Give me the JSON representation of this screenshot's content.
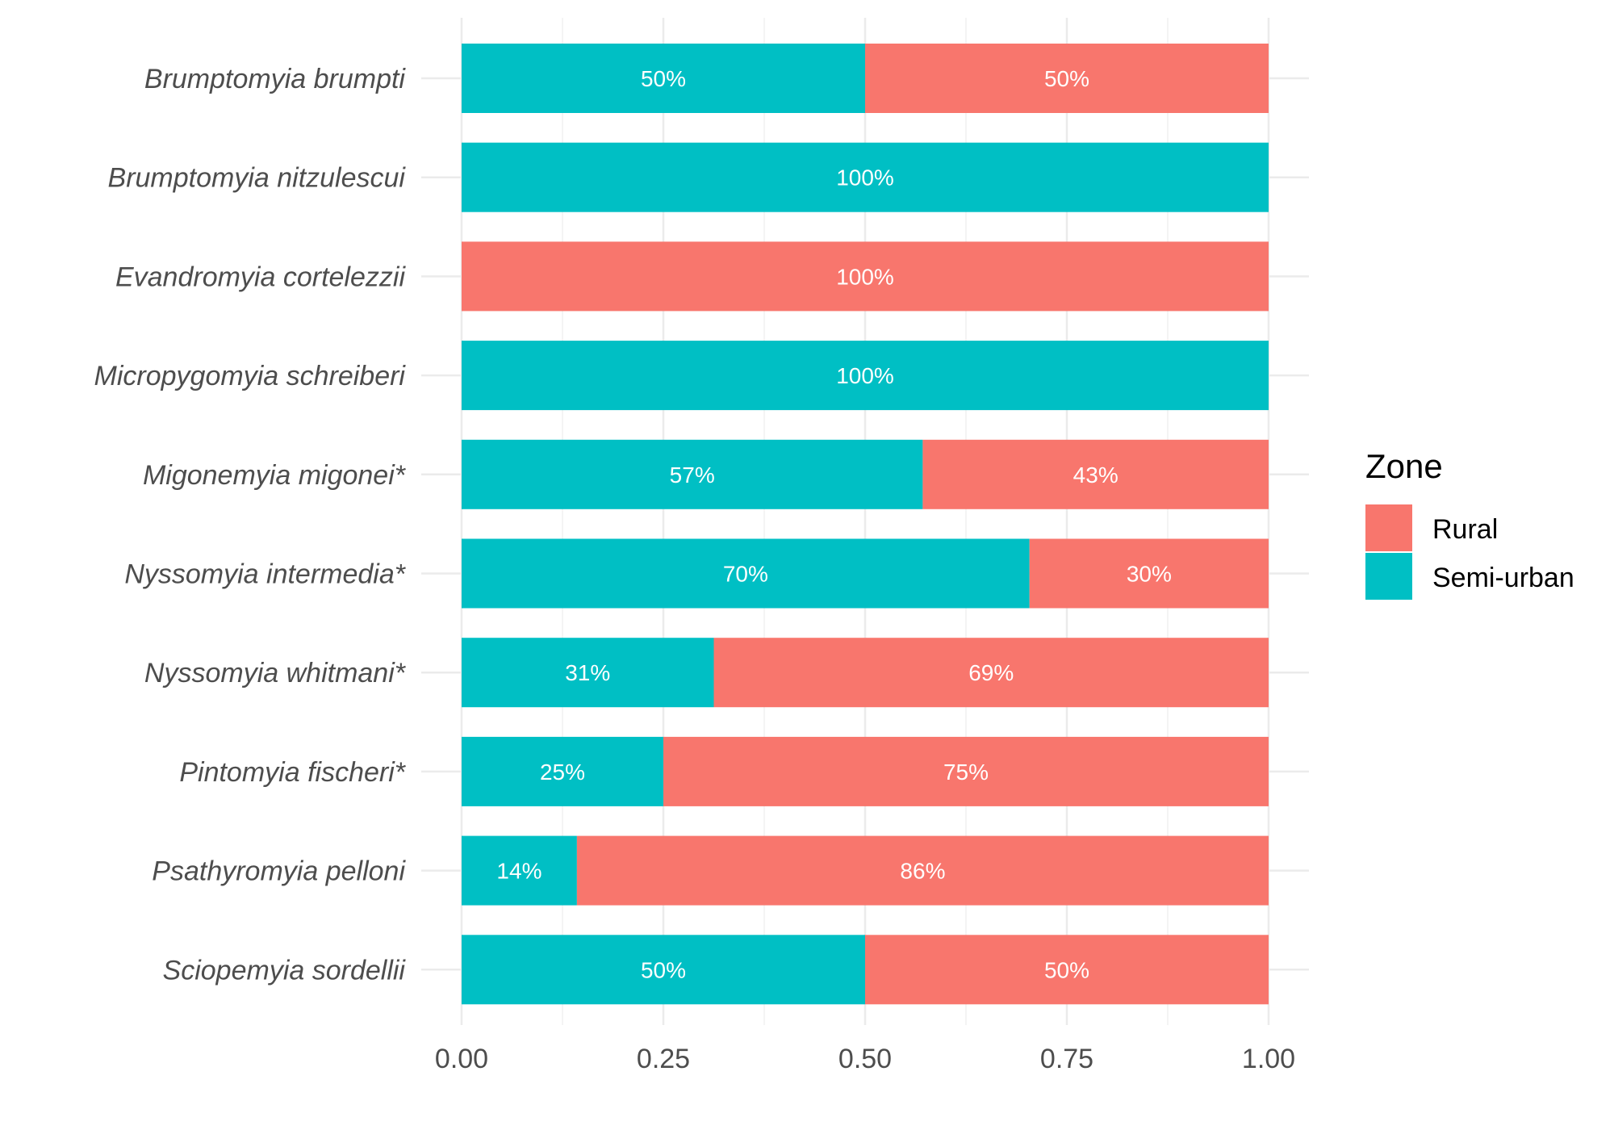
{
  "chart_data": {
    "type": "bar",
    "orientation": "horizontal",
    "stacked": true,
    "categories": [
      "Brumptomyia brumpti",
      "Brumptomyia nitzulescui",
      "Evandromyia cortelezzii",
      "Micropygomyia schreiberi",
      "Migonemyia migonei*",
      "Nyssomyia intermedia*",
      "Nyssomyia whitmani*",
      "Pintomyia fischeri*",
      "Psathyromyia pelloni",
      "Sciopemyia sordellii"
    ],
    "series": [
      {
        "name": "Semi-urban",
        "color": "#00bfc4",
        "values": [
          0.5,
          1.0,
          0.0,
          1.0,
          0.5714,
          0.7037,
          0.3125,
          0.25,
          0.1429,
          0.5
        ],
        "labels": [
          "50%",
          "100%",
          "",
          "100%",
          "57%",
          "70%",
          "31%",
          "25%",
          "14%",
          "50%"
        ]
      },
      {
        "name": "Rural",
        "color": "#f8766d",
        "values": [
          0.5,
          0.0,
          1.0,
          0.0,
          0.4286,
          0.2963,
          0.6875,
          0.75,
          0.8571,
          0.5
        ],
        "labels": [
          "50%",
          "",
          "100%",
          "",
          "43%",
          "30%",
          "69%",
          "75%",
          "86%",
          "50%"
        ]
      }
    ],
    "xlim": [
      0,
      1
    ],
    "xticks": [
      "0.00",
      "0.25",
      "0.50",
      "0.75",
      "1.00"
    ],
    "xlabel": "",
    "ylabel": "",
    "grid": true,
    "legend": {
      "title": "Zone",
      "position": "right",
      "entries": [
        {
          "name": "Rural",
          "color": "#f8766d"
        },
        {
          "name": "Semi-urban",
          "color": "#00bfc4"
        }
      ]
    }
  }
}
